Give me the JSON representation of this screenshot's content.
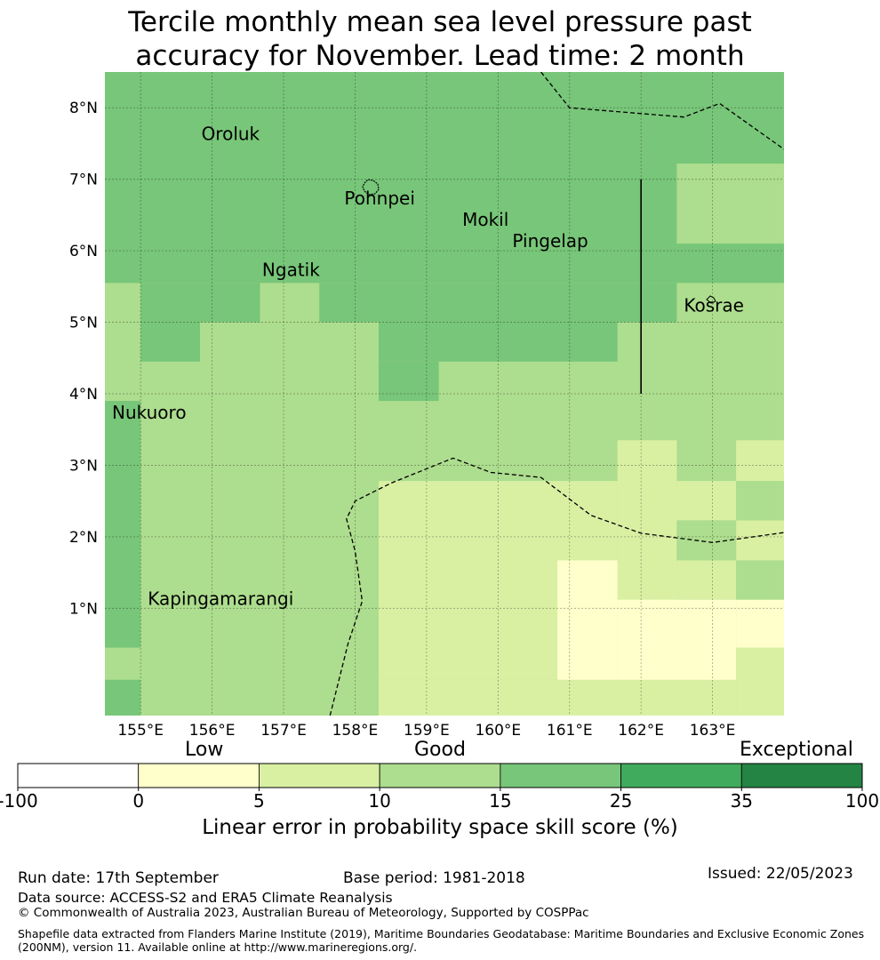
{
  "title": {
    "line1": "Tercile monthly mean sea level pressure past",
    "line2": "accuracy for November. Lead time: 2 month"
  },
  "map": {
    "lon_range": [
      154.5,
      164.0
    ],
    "lat_range": [
      -0.5,
      8.5
    ],
    "x_tick_labels": [
      "155°E",
      "156°E",
      "157°E",
      "158°E",
      "159°E",
      "160°E",
      "161°E",
      "162°E",
      "163°E"
    ],
    "y_tick_labels": [
      "1°N",
      "2°N",
      "3°N",
      "4°N",
      "5°N",
      "6°N",
      "7°N",
      "8°N"
    ],
    "grid_visible": true,
    "place_labels": [
      {
        "name": "Oroluk",
        "lon": 155.85,
        "lat": 7.55
      },
      {
        "name": "Pohnpei",
        "lon": 157.85,
        "lat": 6.65
      },
      {
        "name": "Mokil",
        "lon": 159.5,
        "lat": 6.35
      },
      {
        "name": "Pingelap",
        "lon": 160.2,
        "lat": 6.05
      },
      {
        "name": "Ngatik",
        "lon": 156.7,
        "lat": 5.65
      },
      {
        "name": "Kosrae",
        "lon": 162.6,
        "lat": 5.15
      },
      {
        "name": "Nukuoro",
        "lon": 154.6,
        "lat": 3.65
      },
      {
        "name": "Kapingamarangi",
        "lon": 155.1,
        "lat": 1.05
      }
    ],
    "colors": {
      "class_15_25": "#78c679",
      "class_10_15": "#addd8e",
      "class_5_10": "#d9f0a3",
      "class_0_5": "#ffffcc"
    },
    "cells": [
      {
        "lon": [
          154.5,
          164.0
        ],
        "lat": [
          -0.5,
          8.5
        ],
        "class": "class_10_15"
      },
      {
        "lon": [
          154.5,
          164.0
        ],
        "lat": [
          7.22,
          8.5
        ],
        "class": "class_15_25"
      },
      {
        "lon": [
          154.5,
          162.5
        ],
        "lat": [
          5.55,
          7.22
        ],
        "class": "class_15_25"
      },
      {
        "lon": [
          162.5,
          164.0
        ],
        "lat": [
          5.55,
          6.1
        ],
        "class": "class_15_25"
      },
      {
        "lon": [
          155.0,
          156.67
        ],
        "lat": [
          5.0,
          5.55
        ],
        "class": "class_15_25"
      },
      {
        "lon": [
          157.5,
          162.5
        ],
        "lat": [
          5.0,
          5.55
        ],
        "class": "class_15_25"
      },
      {
        "lon": [
          155.0,
          155.83
        ],
        "lat": [
          4.45,
          5.0
        ],
        "class": "class_15_25"
      },
      {
        "lon": [
          158.33,
          161.67
        ],
        "lat": [
          4.45,
          5.0
        ],
        "class": "class_15_25"
      },
      {
        "lon": [
          158.33,
          159.17
        ],
        "lat": [
          3.9,
          4.45
        ],
        "class": "class_15_25"
      },
      {
        "lon": [
          154.5,
          155.0
        ],
        "lat": [
          0.45,
          3.9
        ],
        "class": "class_15_25"
      },
      {
        "lon": [
          154.5,
          155.0
        ],
        "lat": [
          -0.5,
          0.0
        ],
        "class": "class_15_25"
      },
      {
        "lon": [
          158.33,
          161.67
        ],
        "lat": [
          0.0,
          2.78
        ],
        "class": "class_5_10"
      },
      {
        "lon": [
          161.67,
          162.5
        ],
        "lat": [
          0.0,
          3.35
        ],
        "class": "class_5_10"
      },
      {
        "lon": [
          162.5,
          163.33
        ],
        "lat": [
          0.0,
          2.23
        ],
        "class": "class_5_10"
      },
      {
        "lon": [
          162.5,
          163.33
        ],
        "lat": [
          2.23,
          2.78
        ],
        "class": "class_5_10"
      },
      {
        "lon": [
          163.33,
          164.0
        ],
        "lat": [
          2.78,
          3.35
        ],
        "class": "class_5_10"
      },
      {
        "lon": [
          163.33,
          164.0
        ],
        "lat": [
          1.67,
          2.23
        ],
        "class": "class_5_10"
      },
      {
        "lon": [
          163.33,
          164.0
        ],
        "lat": [
          -0.5,
          0.45
        ],
        "class": "class_5_10"
      },
      {
        "lon": [
          158.33,
          163.33
        ],
        "lat": [
          -0.5,
          0.0
        ],
        "class": "class_5_10"
      },
      {
        "lon": [
          162.5,
          163.33
        ],
        "lat": [
          1.67,
          2.23
        ],
        "class": "class_10_15"
      },
      {
        "lon": [
          163.33,
          164.0
        ],
        "lat": [
          2.23,
          2.78
        ],
        "class": "class_10_15"
      },
      {
        "lon": [
          163.33,
          164.0
        ],
        "lat": [
          1.12,
          1.67
        ],
        "class": "class_10_15"
      },
      {
        "lon": [
          162.5,
          163.33
        ],
        "lat": [
          0.45,
          1.12
        ],
        "class": "class_10_15"
      },
      {
        "lon": [
          160.83,
          161.67
        ],
        "lat": [
          0.0,
          1.67
        ],
        "class": "class_0_5"
      },
      {
        "lon": [
          161.67,
          163.33
        ],
        "lat": [
          0.0,
          1.12
        ],
        "class": "class_0_5"
      },
      {
        "lon": [
          163.33,
          164.0
        ],
        "lat": [
          0.45,
          1.12
        ],
        "class": "class_0_5"
      }
    ],
    "eez_boundaries": [
      [
        [
          160.6,
          8.5
        ],
        [
          161.0,
          8.0
        ],
        [
          162.6,
          7.87
        ],
        [
          163.1,
          8.06
        ],
        [
          164.0,
          7.42
        ]
      ],
      [
        [
          157.65,
          -0.5
        ],
        [
          157.9,
          0.5
        ],
        [
          158.1,
          1.1
        ],
        [
          158.0,
          1.8
        ],
        [
          157.88,
          2.25
        ],
        [
          158.0,
          2.5
        ],
        [
          158.5,
          2.75
        ],
        [
          159.37,
          3.1
        ],
        [
          159.9,
          2.9
        ],
        [
          160.6,
          2.83
        ],
        [
          161.3,
          2.3
        ],
        [
          162.0,
          2.05
        ],
        [
          163.0,
          1.92
        ],
        [
          164.0,
          2.06
        ]
      ]
    ],
    "solid_line": {
      "lon": 162.0,
      "lat": [
        4.0,
        7.0
      ]
    }
  },
  "colorbar": {
    "bounds": [
      -100,
      0,
      5,
      10,
      15,
      25,
      35,
      100
    ],
    "tick_labels": [
      "-100",
      "0",
      "5",
      "10",
      "15",
      "25",
      "35",
      "100"
    ],
    "colors": [
      "#ffffff",
      "#ffffcc",
      "#d9f0a3",
      "#addd8e",
      "#78c679",
      "#41ab5d",
      "#238443"
    ],
    "category_labels": [
      "Low",
      "Good",
      "Exceptional"
    ],
    "title": "Linear error in probability space skill score (%)"
  },
  "footer": {
    "run_date": "Run date: 17th September",
    "base_period": "Base period: 1981-2018",
    "issued": "Issued: 22/05/2023",
    "data_source": "Data source: ACCESS-S2 and ERA5 Climate Reanalysis",
    "copyright": "© Commonwealth of Australia 2023, Australian Bureau of Meteorology, Supported by COSPPac",
    "shapefile": "Shapefile data extracted from Flanders Marine Institute (2019), Maritime Boundaries Geodatabase: Maritime Boundaries and Exclusive Economic Zones (200NM), version 11. Available online at http://www.marineregions.org/."
  }
}
